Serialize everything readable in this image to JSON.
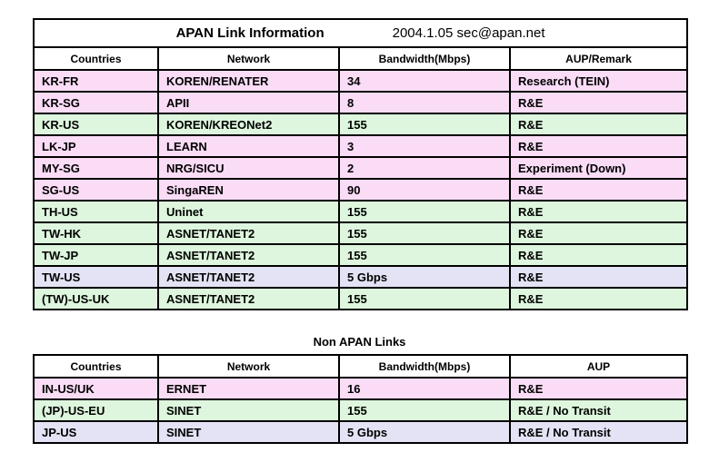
{
  "colors": {
    "pink": "#FADCF6",
    "green": "#DDF6DD",
    "lavender": "#E3E3F5",
    "white": "#FFFFFF",
    "border": "#000000"
  },
  "apan_table": {
    "title": "APAN Link Information",
    "date_contact": "2004.1.05  sec@apan.net",
    "headers": [
      "Countries",
      "Network",
      "Bandwidth(Mbps)",
      "AUP/Remark"
    ],
    "rows": [
      {
        "countries": "KR-FR",
        "network": "KOREN/RENATER",
        "bandwidth": "34",
        "aup": "Research (TEIN)",
        "color": "pink"
      },
      {
        "countries": "KR-SG",
        "network": "APII",
        "bandwidth": "8",
        "aup": "R&E",
        "color": "pink"
      },
      {
        "countries": "KR-US",
        "network": "KOREN/KREONet2",
        "bandwidth": "155",
        "aup": "R&E",
        "color": "green"
      },
      {
        "countries": "LK-JP",
        "network": "LEARN",
        "bandwidth": "3",
        "aup": "R&E",
        "color": "pink"
      },
      {
        "countries": "MY-SG",
        "network": "NRG/SICU",
        "bandwidth": "2",
        "aup": "Experiment (Down)",
        "color": "pink"
      },
      {
        "countries": "SG-US",
        "network": "SingaREN",
        "bandwidth": "90",
        "aup": "R&E",
        "color": "pink"
      },
      {
        "countries": "TH-US",
        "network": "Uninet",
        "bandwidth": "155",
        "aup": "R&E",
        "color": "green"
      },
      {
        "countries": "TW-HK",
        "network": "ASNET/TANET2",
        "bandwidth": "155",
        "aup": "R&E",
        "color": "green"
      },
      {
        "countries": "TW-JP",
        "network": "ASNET/TANET2",
        "bandwidth": "155",
        "aup": "R&E",
        "color": "green"
      },
      {
        "countries": "TW-US",
        "network": "ASNET/TANET2",
        "bandwidth": "5 Gbps",
        "aup": "R&E",
        "color": "lavender"
      },
      {
        "countries": "(TW)-US-UK",
        "network": "ASNET/TANET2",
        "bandwidth": "155",
        "aup": "R&E",
        "color": "green"
      }
    ]
  },
  "section_title": "Non APAN Links",
  "non_apan_table": {
    "headers": [
      "Countries",
      "Network",
      "Bandwidth(Mbps)",
      "AUP"
    ],
    "rows": [
      {
        "countries": "IN-US/UK",
        "network": "ERNET",
        "bandwidth": "16",
        "aup": "R&E",
        "color": "pink"
      },
      {
        "countries": "(JP)-US-EU",
        "network": "SINET",
        "bandwidth": "155",
        "aup": "R&E / No Transit",
        "color": "green"
      },
      {
        "countries": "JP-US",
        "network": "SINET",
        "bandwidth": "5 Gbps",
        "aup": "R&E / No Transit",
        "color": "lavender"
      }
    ]
  }
}
